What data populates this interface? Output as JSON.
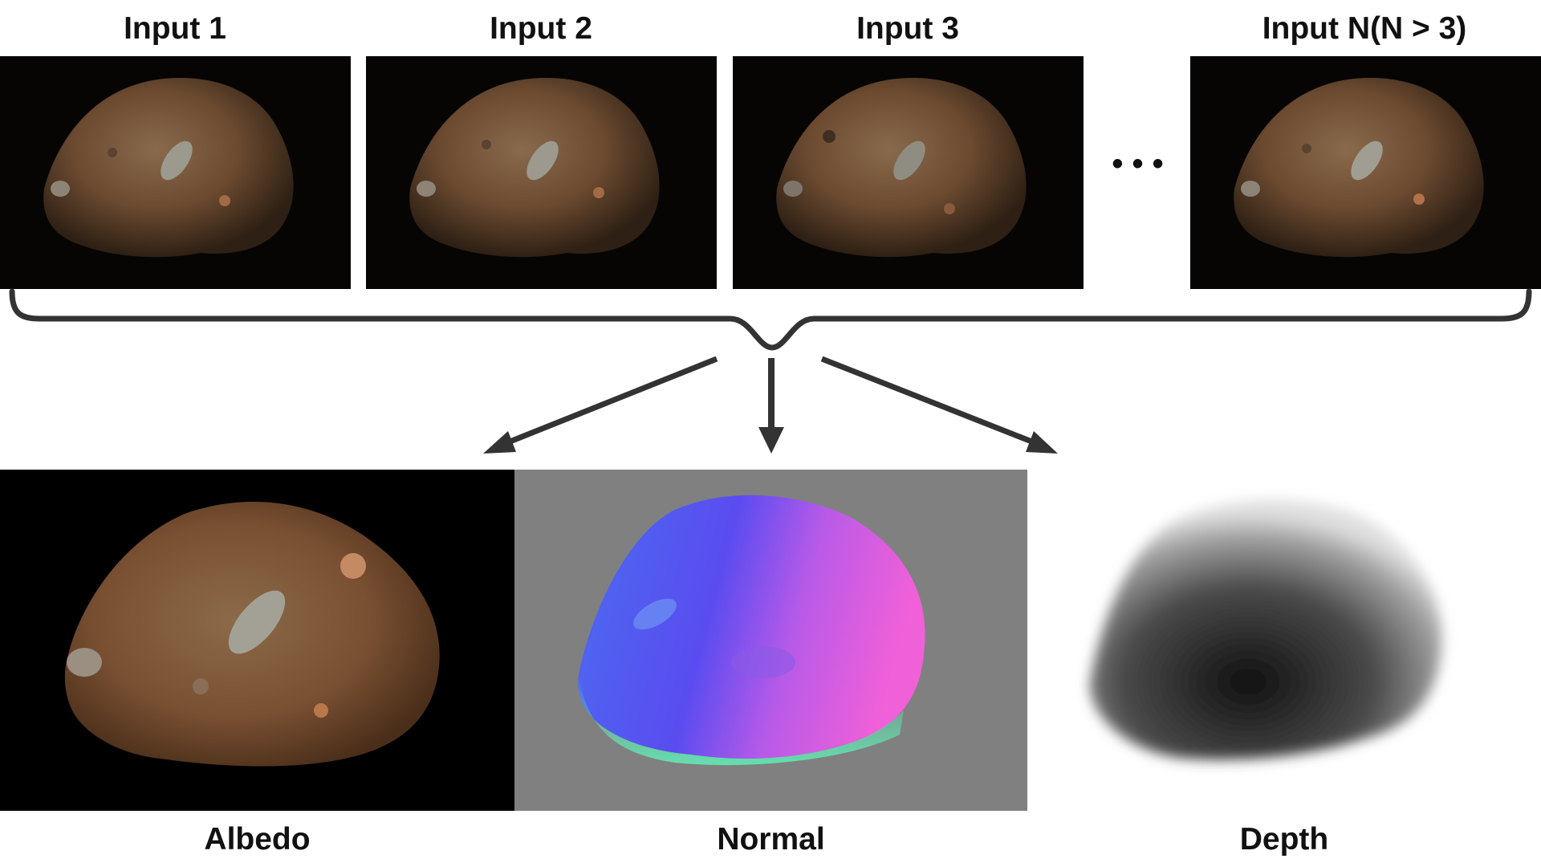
{
  "inputs": [
    {
      "label": "Input 1"
    },
    {
      "label": "Input 2"
    },
    {
      "label": "Input 3"
    },
    {
      "label": "Input N(N > 3)"
    }
  ],
  "ellipsis": "• • •",
  "outputs": [
    {
      "label": "Albedo"
    },
    {
      "label": "Normal"
    },
    {
      "label": "Depth"
    }
  ],
  "colors": {
    "rock_brown": "#7a5638",
    "rock_dark": "#3b2a1c",
    "input_bg": "#060504",
    "normal_bg": "#808080",
    "normal_blue": "#5a4cf0",
    "normal_pink": "#f060d8",
    "normal_green": "#60f0b8",
    "connector": "#333333"
  }
}
